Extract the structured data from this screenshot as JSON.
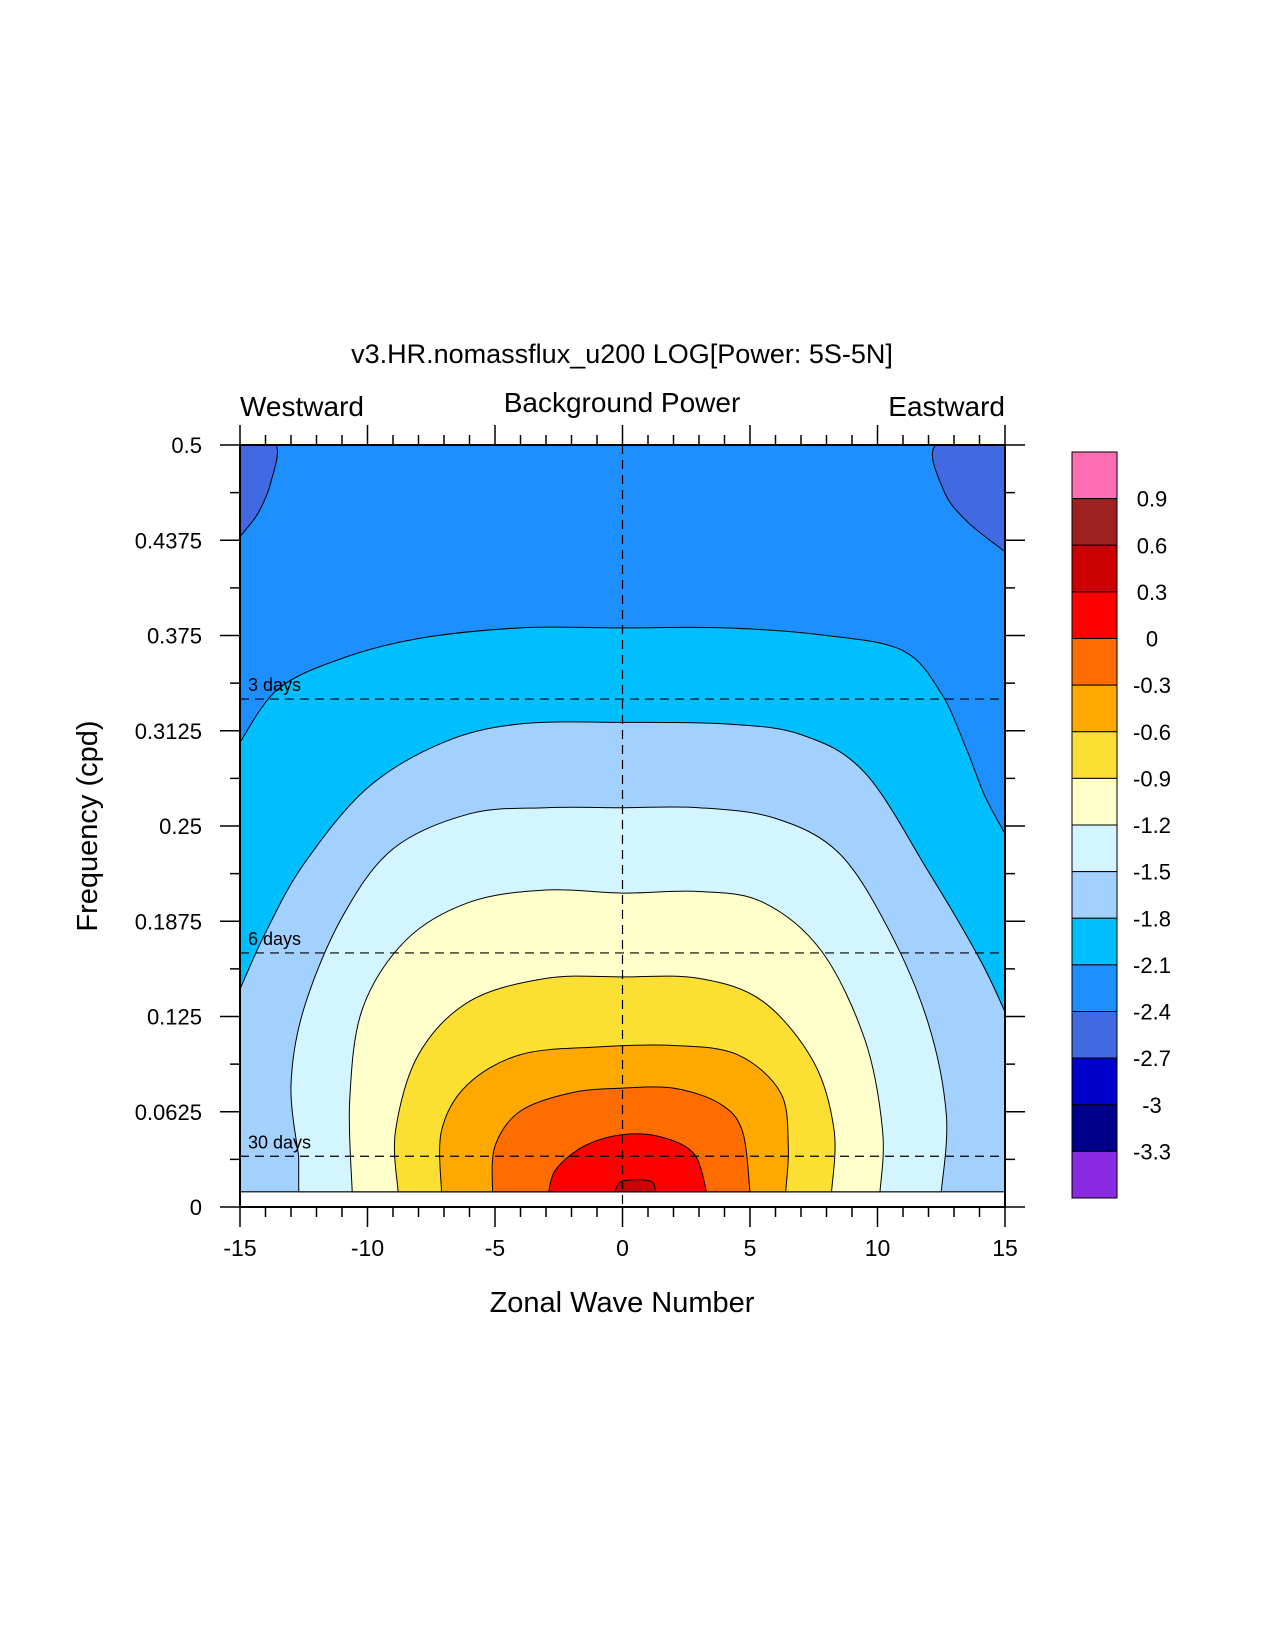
{
  "chart_data": {
    "type": "heatmap",
    "title": "v3.HR.nomassflux_u200 LOG[Power: 5S-5N]",
    "subtitle_left": "Westward",
    "subtitle_center": "Background Power",
    "subtitle_right": "Eastward",
    "xlabel": "Zonal Wave Number",
    "ylabel": "Frequency (cpd)",
    "xlim": [
      -15,
      15
    ],
    "ylim": [
      0,
      0.5
    ],
    "x_ticks": [
      "-15",
      "-10",
      "-5",
      "0",
      "5",
      "10",
      "15"
    ],
    "x_tick_values": [
      -15,
      -10,
      -5,
      0,
      5,
      10,
      15
    ],
    "y_ticks": [
      "0",
      "0.0625",
      "0.125",
      "0.1875",
      "0.25",
      "0.3125",
      "0.375",
      "0.4375",
      "0.5"
    ],
    "y_tick_values": [
      0,
      0.0625,
      0.125,
      0.1875,
      0.25,
      0.3125,
      0.375,
      0.4375,
      0.5
    ],
    "data_ymin": 0.01,
    "reference_lines": [
      {
        "label": "3 days",
        "frequency": 0.3333
      },
      {
        "label": "6 days",
        "frequency": 0.1667
      },
      {
        "label": "30 days",
        "frequency": 0.0333
      }
    ],
    "colorbar": {
      "labels": [
        "0.9",
        "0.6",
        "0.3",
        "0",
        "-0.3",
        "-0.6",
        "-0.9",
        "-1.2",
        "-1.5",
        "-1.8",
        "-2.1",
        "-2.4",
        "-2.7",
        "-3",
        "-3.3"
      ],
      "colors": [
        "#ff6eb4",
        "#9e2121",
        "#cc0000",
        "#ff0000",
        "#ff6d00",
        "#ffa800",
        "#fbe033",
        "#ffffcc",
        "#d2f5ff",
        "#a2d0ff",
        "#00bfff",
        "#1e8fff",
        "#4169e1",
        "#0000cd",
        "#00008b",
        "#8a2be2"
      ]
    },
    "contour_levels": [
      {
        "level": -2.4,
        "color": "#4169e1",
        "regions": [
          {
            "side": "left",
            "points": [
              [
                -15,
                0.5
              ],
              [
                -13.6,
                0.5
              ],
              [
                -13.8,
                0.475
              ],
              [
                -14.3,
                0.455
              ],
              [
                -15,
                0.44
              ]
            ]
          },
          {
            "side": "right",
            "points": [
              [
                15,
                0.5
              ],
              [
                12.3,
                0.5
              ],
              [
                12.6,
                0.47
              ],
              [
                13.5,
                0.45
              ],
              [
                15,
                0.43
              ]
            ]
          }
        ]
      },
      {
        "level": -2.1,
        "color": "#00bfff",
        "points": [
          [
            -15,
            0.305
          ],
          [
            -13.5,
            0.34
          ],
          [
            -11,
            0.36
          ],
          [
            -8,
            0.373
          ],
          [
            -4,
            0.38
          ],
          [
            0,
            0.38
          ],
          [
            4,
            0.38
          ],
          [
            8,
            0.375
          ],
          [
            11,
            0.365
          ],
          [
            12.5,
            0.337
          ],
          [
            13.5,
            0.3
          ],
          [
            14.2,
            0.27
          ],
          [
            15,
            0.245
          ]
        ]
      },
      {
        "level": -1.8,
        "color": "#a2d0ff",
        "points": [
          [
            -15,
            0.143
          ],
          [
            -14,
            0.18
          ],
          [
            -12.5,
            0.225
          ],
          [
            -10,
            0.275
          ],
          [
            -7,
            0.305
          ],
          [
            -4,
            0.317
          ],
          [
            0,
            0.318
          ],
          [
            4,
            0.317
          ],
          [
            7,
            0.31
          ],
          [
            9.5,
            0.285
          ],
          [
            12,
            0.22
          ],
          [
            14,
            0.163
          ],
          [
            15,
            0.128
          ]
        ]
      },
      {
        "level": -1.5,
        "color": "#d2f5ff",
        "points": [
          [
            -12.7,
            0.033
          ],
          [
            -13,
            0.08
          ],
          [
            -12.5,
            0.13
          ],
          [
            -11,
            0.19
          ],
          [
            -9,
            0.235
          ],
          [
            -6,
            0.258
          ],
          [
            -3,
            0.262
          ],
          [
            0,
            0.262
          ],
          [
            3,
            0.262
          ],
          [
            6,
            0.255
          ],
          [
            8.5,
            0.232
          ],
          [
            10.5,
            0.18
          ],
          [
            12,
            0.12
          ],
          [
            12.7,
            0.06
          ],
          [
            12.5,
            0.01
          ]
        ]
      },
      {
        "level": -1.2,
        "color": "#ffffcc",
        "points": [
          [
            -10.6,
            0.01
          ],
          [
            -10.7,
            0.07
          ],
          [
            -10.2,
            0.13
          ],
          [
            -8.5,
            0.175
          ],
          [
            -6,
            0.2
          ],
          [
            -3,
            0.208
          ],
          [
            0,
            0.206
          ],
          [
            3,
            0.207
          ],
          [
            5.5,
            0.2
          ],
          [
            7.8,
            0.168
          ],
          [
            9.5,
            0.11
          ],
          [
            10.2,
            0.05
          ],
          [
            10.1,
            0.01
          ]
        ]
      },
      {
        "level": -0.9,
        "color": "#fbe033",
        "points": [
          [
            -8.8,
            0.01
          ],
          [
            -8.9,
            0.05
          ],
          [
            -8,
            0.1
          ],
          [
            -6,
            0.135
          ],
          [
            -3,
            0.15
          ],
          [
            0,
            0.151
          ],
          [
            3,
            0.15
          ],
          [
            5.5,
            0.135
          ],
          [
            7.5,
            0.095
          ],
          [
            8.3,
            0.05
          ],
          [
            8.2,
            0.01
          ]
        ]
      },
      {
        "level": -0.6,
        "color": "#ffa800",
        "points": [
          [
            -7.1,
            0.01
          ],
          [
            -7.1,
            0.05
          ],
          [
            -6.1,
            0.08
          ],
          [
            -4,
            0.1
          ],
          [
            -1,
            0.105
          ],
          [
            2,
            0.106
          ],
          [
            4.5,
            0.1
          ],
          [
            6.2,
            0.075
          ],
          [
            6.5,
            0.04
          ],
          [
            6.4,
            0.01
          ]
        ]
      },
      {
        "level": -0.3,
        "color": "#ff6d00",
        "points": [
          [
            -5.1,
            0.01
          ],
          [
            -5,
            0.04
          ],
          [
            -4,
            0.063
          ],
          [
            -2,
            0.075
          ],
          [
            0,
            0.078
          ],
          [
            2,
            0.078
          ],
          [
            3.8,
            0.068
          ],
          [
            4.7,
            0.05
          ],
          [
            5,
            0.01
          ]
        ]
      },
      {
        "level": 0,
        "color": "#ff0000",
        "points": [
          [
            -2.9,
            0.01
          ],
          [
            -2.6,
            0.025
          ],
          [
            -1.5,
            0.04
          ],
          [
            0,
            0.0475
          ],
          [
            1.5,
            0.046
          ],
          [
            2.8,
            0.035
          ],
          [
            3.3,
            0.01
          ]
        ]
      },
      {
        "level": 0.3,
        "color": "#cc0000",
        "points": [
          [
            -0.3,
            0.01
          ],
          [
            0,
            0.017
          ],
          [
            1.1,
            0.017
          ],
          [
            1.3,
            0.01
          ]
        ]
      }
    ],
    "grid": false
  }
}
